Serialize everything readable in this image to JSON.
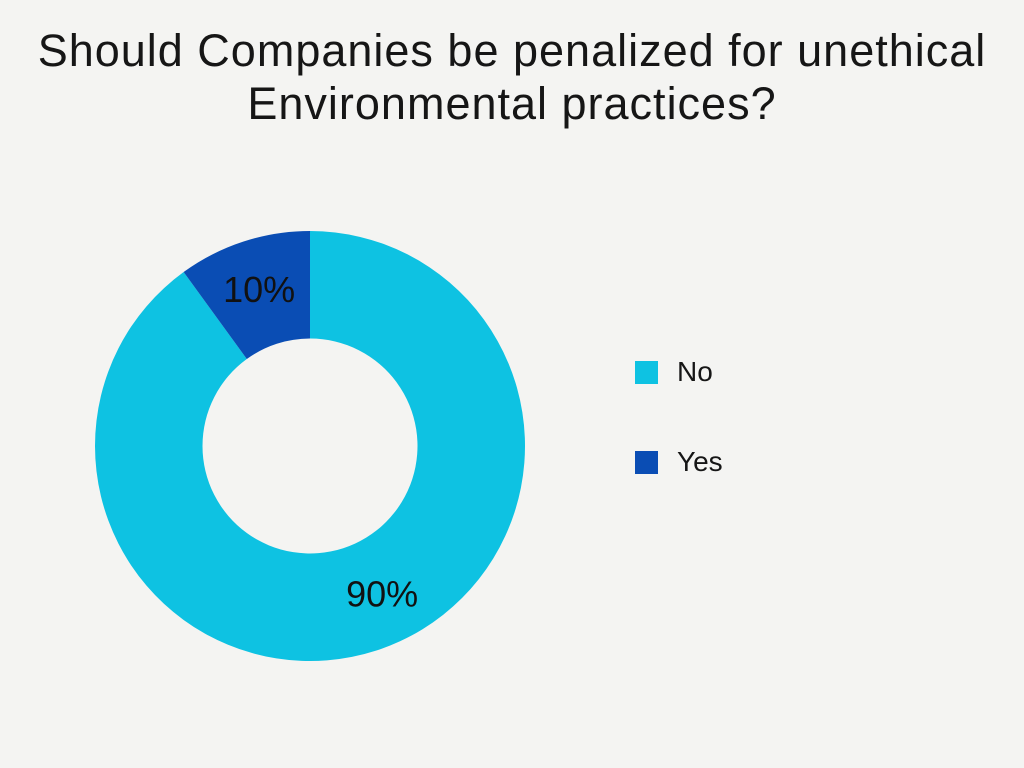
{
  "page": {
    "background": "#f4f4f2",
    "text_color": "#161616"
  },
  "title": {
    "text": "Should Companies be penalized for unethical Environmental practices?"
  },
  "legend": {
    "items": [
      {
        "label": "No",
        "color": "#0ec2e2"
      },
      {
        "label": "Yes",
        "color": "#0a4db4"
      }
    ]
  },
  "chart_data": {
    "type": "pie",
    "subtype": "donut",
    "title": "Should Companies be penalized for unethical Environmental practices?",
    "categories": [
      "No",
      "Yes"
    ],
    "values": [
      90,
      10
    ],
    "slices": [
      {
        "label": "No",
        "value": 90,
        "display": "90%",
        "color": "#0ec2e2",
        "label_angle_deg": 154
      },
      {
        "label": "Yes",
        "value": 10,
        "display": "10%",
        "color": "#0a4db4",
        "label_angle_deg": 342
      }
    ],
    "total": 100,
    "start_angle_deg": 0,
    "direction": "clockwise",
    "inner_radius_ratio": 0.5,
    "label_radius_ratio": 0.765,
    "data_label_color": "#111111",
    "legend_position": "right",
    "grid": false
  }
}
